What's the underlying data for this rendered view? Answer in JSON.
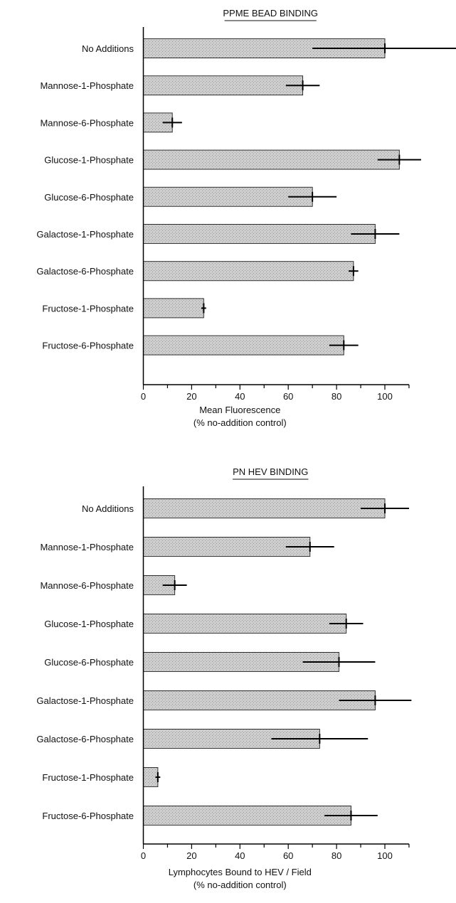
{
  "chart_data": [
    {
      "type": "bar",
      "orientation": "horizontal",
      "title": "PPME BEAD BINDING",
      "categories": [
        "No Additions",
        "Mannose-1-Phosphate",
        "Mannose-6-Phosphate",
        "Glucose-1-Phosphate",
        "Glucose-6-Phosphate",
        "Galactose-1-Phosphate",
        "Galactose-6-Phosphate",
        "Fructose-1-Phosphate",
        "Fructose-6-Phosphate"
      ],
      "values": [
        100,
        66,
        12,
        106,
        70,
        96,
        87,
        25,
        83
      ],
      "errors": [
        30,
        7,
        4,
        9,
        10,
        10,
        2,
        1,
        6
      ],
      "xlabel": [
        "Mean Fluorescence",
        "(% no-addition control)"
      ],
      "xlim": [
        0,
        110
      ],
      "xticks": [
        0,
        20,
        40,
        60,
        80,
        100
      ],
      "grid": false
    },
    {
      "type": "bar",
      "orientation": "horizontal",
      "title": "PN HEV BINDING",
      "categories": [
        "No Additions",
        "Mannose-1-Phosphate",
        "Mannose-6-Phosphate",
        "Glucose-1-Phosphate",
        "Glucose-6-Phosphate",
        "Galactose-1-Phosphate",
        "Galactose-6-Phosphate",
        "Fructose-1-Phosphate",
        "Fructose-6-Phosphate"
      ],
      "values": [
        100,
        69,
        13,
        84,
        81,
        96,
        73,
        6,
        86
      ],
      "errors": [
        10,
        10,
        5,
        7,
        15,
        15,
        20,
        1,
        11
      ],
      "xlabel": [
        "Lymphocytes Bound to HEV / Field",
        "(% no-addition control)"
      ],
      "xlim": [
        0,
        110
      ],
      "xticks": [
        0,
        20,
        40,
        60,
        80,
        100
      ],
      "grid": false
    }
  ]
}
